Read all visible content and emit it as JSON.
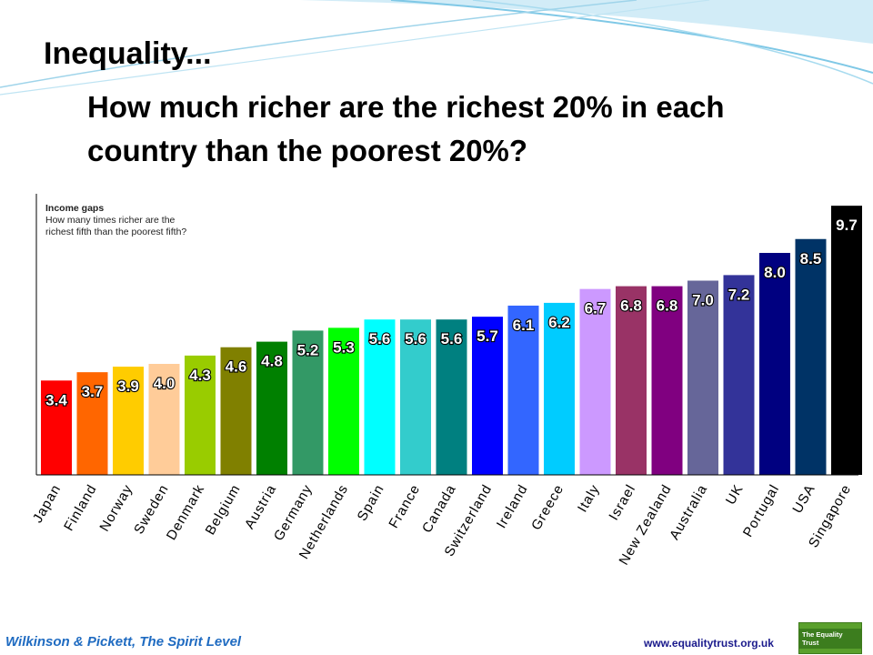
{
  "slide": {
    "title": "Inequality...",
    "subtitle": "How much richer are the richest 20% in each country than the poorest 20%?",
    "footer_source": "Wilkinson & Pickett, The Spirit Level",
    "footer_url": "www.equalitytrust.org.uk",
    "logo_text": "The Equality Trust"
  },
  "chart_data": {
    "type": "bar",
    "title": "Income gaps",
    "subtitle": "How many times richer are the richest fifth than the poorest fifth?",
    "xlabel": "",
    "ylabel": "",
    "ylim": [
      0,
      10
    ],
    "grid": false,
    "categories": [
      "Japan",
      "Finland",
      "Norway",
      "Sweden",
      "Denmark",
      "Belgium",
      "Austria",
      "Germany",
      "Netherlands",
      "Spain",
      "France",
      "Canada",
      "Switzerland",
      "Ireland",
      "Greece",
      "Italy",
      "Israel",
      "New Zealand",
      "Australia",
      "UK",
      "Portugal",
      "USA",
      "Singapore"
    ],
    "values": [
      3.4,
      3.7,
      3.9,
      4.0,
      4.3,
      4.6,
      4.8,
      5.2,
      5.3,
      5.6,
      5.6,
      5.6,
      5.7,
      6.1,
      6.2,
      6.7,
      6.8,
      6.8,
      7.0,
      7.2,
      8.0,
      8.5,
      9.7
    ],
    "labels": [
      "3.4",
      "3.7",
      "3.9",
      "4.0",
      "4.3",
      "4.6",
      "4.8",
      "5.2",
      "5.3",
      "5.6",
      "5.6",
      "5.6",
      "5.7",
      "6.1",
      "6.2",
      "6.7",
      "6.8",
      "6.8",
      "7.0",
      "7.2",
      "8.0",
      "8.5",
      "9.7"
    ],
    "colors": [
      "#ff0000",
      "#ff6600",
      "#ffcc00",
      "#ffcc99",
      "#99cc00",
      "#808000",
      "#008000",
      "#339966",
      "#00ff00",
      "#00ffff",
      "#33cccc",
      "#008080",
      "#0000ff",
      "#3366ff",
      "#00ccff",
      "#cc99ff",
      "#993366",
      "#800080",
      "#666699",
      "#333399",
      "#000080",
      "#003366",
      "#000000"
    ]
  }
}
